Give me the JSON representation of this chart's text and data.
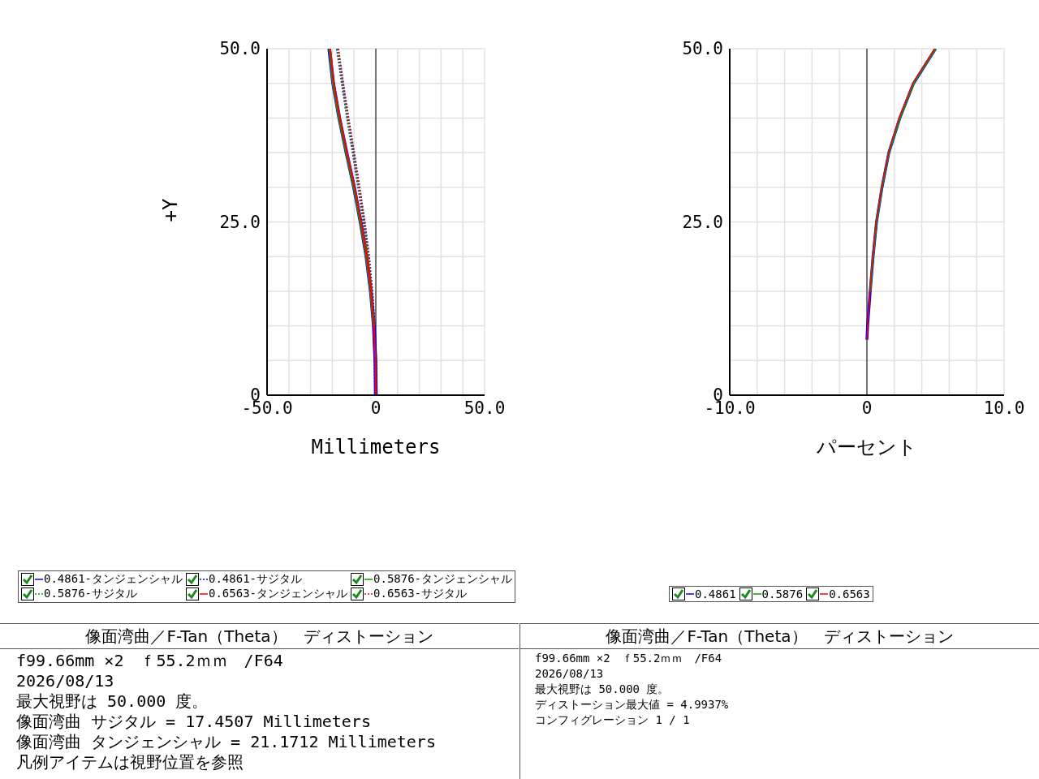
{
  "chart_data": [
    {
      "type": "line",
      "title": "像面湾曲／F-Tan（Theta）　ディストーション",
      "xlabel": "Millimeters",
      "ylabel": "+Y",
      "xlim": [
        -50,
        50
      ],
      "ylim": [
        0,
        50
      ],
      "xticks": [
        {
          "value": -50,
          "label": "-50.0"
        },
        {
          "value": -40,
          "label": null
        },
        {
          "value": -30,
          "label": null
        },
        {
          "value": -20,
          "label": null
        },
        {
          "value": -10,
          "label": null
        },
        0,
        {
          "value": 10,
          "label": null
        },
        {
          "value": 20,
          "label": null
        },
        {
          "value": 30,
          "label": null
        },
        {
          "value": 40,
          "label": null
        },
        {
          "value": 50,
          "label": "50.0"
        }
      ],
      "yticks": [
        0,
        {
          "value": 5,
          "label": null
        },
        {
          "value": 10,
          "label": null
        },
        {
          "value": 15,
          "label": null
        },
        {
          "value": 20,
          "label": null
        },
        {
          "value": 25,
          "label": "25.0"
        },
        {
          "value": 30,
          "label": null
        },
        {
          "value": 35,
          "label": null
        },
        {
          "value": 40,
          "label": null
        },
        {
          "value": 45,
          "label": null
        },
        {
          "value": 50,
          "label": "50.0"
        }
      ],
      "grid": true,
      "legend": "bottom",
      "ref_lines": [
        {
          "axis": "x",
          "value": 0,
          "color": "#000000"
        }
      ],
      "series": [
        {
          "name": "0.4861-タンジェンシャル",
          "color": "#0000ff",
          "line_style": "solid",
          "x": [
            0,
            -0.2,
            -0.9,
            -2.3,
            -4.3,
            -7,
            -10,
            -13.5,
            -16.8,
            -19.6,
            -21.4
          ],
          "values": [
            0,
            5,
            10,
            15,
            20,
            25,
            30,
            35,
            40,
            45,
            50
          ]
        },
        {
          "name": "0.4861-サジタル",
          "color": "#0000ff",
          "line_style": "dotted",
          "x": [
            0,
            -0.2,
            -0.8,
            -1.9,
            -3.4,
            -5.4,
            -7.8,
            -10.3,
            -12.9,
            -15.3,
            -17.6
          ],
          "values": [
            0,
            5,
            10,
            15,
            20,
            25,
            30,
            35,
            40,
            45,
            50
          ]
        },
        {
          "name": "0.5876-タンジェンシャル",
          "color": "#00a000",
          "line_style": "solid",
          "x": [
            -0.9,
            -2.3,
            -4.3,
            -7,
            -10,
            -13.5,
            -16.8,
            -19.6,
            -21.2
          ],
          "values": [
            10,
            15,
            20,
            25,
            30,
            35,
            40,
            45,
            50
          ]
        },
        {
          "name": "0.5876-サジタル",
          "color": "#00a000",
          "line_style": "dotted",
          "x": [
            -1.9,
            -3.4,
            -5.4,
            -7.8,
            -10.3,
            -12.9,
            -15.3,
            -17.5
          ],
          "values": [
            15,
            20,
            25,
            30,
            35,
            40,
            45,
            50
          ]
        },
        {
          "name": "0.6563-タンジェンシャル",
          "color": "#ff0000",
          "line_style": "solid",
          "x": [
            0,
            -0.2,
            -0.9,
            -2.2,
            -4.2,
            -6.8,
            -9.8,
            -13.3,
            -16.6,
            -19.4,
            -21
          ],
          "values": [
            0,
            5,
            10,
            15,
            20,
            25,
            30,
            35,
            40,
            45,
            50
          ]
        },
        {
          "name": "0.6563-サジタル",
          "color": "#ff0000",
          "line_style": "dotted",
          "x": [
            0,
            -0.2,
            -0.8,
            -1.8,
            -3.3,
            -5.3,
            -7.6,
            -10.1,
            -12.7,
            -15.1,
            -17.3
          ],
          "values": [
            0,
            5,
            10,
            15,
            20,
            25,
            30,
            35,
            40,
            45,
            50
          ]
        }
      ],
      "annotations": [
        "f99.66mm ×2　ｆ55.2ｍｍ　/F64",
        "2026/08/13",
        "最大視野は 50.000 度。",
        "像面湾曲 サジタル = 17.4507 Millimeters",
        "像面湾曲 タンジェンシャル = 21.1712 Millimeters",
        "凡例アイテムは視野位置を参照"
      ]
    },
    {
      "type": "line",
      "title": "像面湾曲／F-Tan（Theta）　ディストーション",
      "xlabel": "パーセント",
      "xlim": [
        -10,
        10
      ],
      "ylim": [
        0,
        50
      ],
      "xticks": [
        {
          "value": -10,
          "label": "-10.0"
        },
        {
          "value": -8,
          "label": null
        },
        {
          "value": -6,
          "label": null
        },
        {
          "value": -4,
          "label": null
        },
        {
          "value": -2,
          "label": null
        },
        0,
        {
          "value": 2,
          "label": null
        },
        {
          "value": 4,
          "label": null
        },
        {
          "value": 6,
          "label": null
        },
        {
          "value": 8,
          "label": null
        },
        {
          "value": 10,
          "label": "10.0"
        }
      ],
      "yticks": [
        0,
        {
          "value": 5,
          "label": null
        },
        {
          "value": 10,
          "label": null
        },
        {
          "value": 15,
          "label": null
        },
        {
          "value": 20,
          "label": null
        },
        {
          "value": 25,
          "label": "25.0"
        },
        {
          "value": 30,
          "label": null
        },
        {
          "value": 35,
          "label": null
        },
        {
          "value": 40,
          "label": null
        },
        {
          "value": 45,
          "label": null
        },
        {
          "value": 50,
          "label": "50.0"
        }
      ],
      "grid": true,
      "legend": "bottom",
      "ref_lines": [
        {
          "axis": "x",
          "value": 0,
          "color": "#000000"
        }
      ],
      "series": [
        {
          "name": "0.4861",
          "color": "#0000ff",
          "line_style": "solid",
          "x": [
            0,
            0.05,
            0.24,
            0.45,
            0.7,
            1.1,
            1.6,
            2.4,
            3.4,
            5
          ],
          "values": [
            8,
            10,
            15,
            20,
            25,
            30,
            35,
            40,
            45,
            50
          ]
        },
        {
          "name": "0.5876",
          "color": "#00a000",
          "line_style": "solid",
          "x": [
            0.24,
            0.45,
            0.7,
            1.1,
            1.6,
            2.4,
            3.4,
            5
          ],
          "values": [
            15,
            20,
            25,
            30,
            35,
            40,
            45,
            50
          ]
        },
        {
          "name": "0.6563",
          "color": "#ff0000",
          "line_style": "solid",
          "x": [
            0,
            0.05,
            0.23,
            0.44,
            0.68,
            1.08,
            1.58,
            2.35,
            3.35,
            4.95
          ],
          "values": [
            8,
            10,
            15,
            20,
            25,
            30,
            35,
            40,
            45,
            50
          ]
        }
      ],
      "annotations": [
        "f99.66mm ×2　ｆ55.2ｍｍ　/F64",
        "2026/08/13",
        "最大視野は 50.000 度。",
        "ディストーション最大値 = 4.9937%",
        "コンフィグレーション 1 / 1"
      ]
    }
  ]
}
